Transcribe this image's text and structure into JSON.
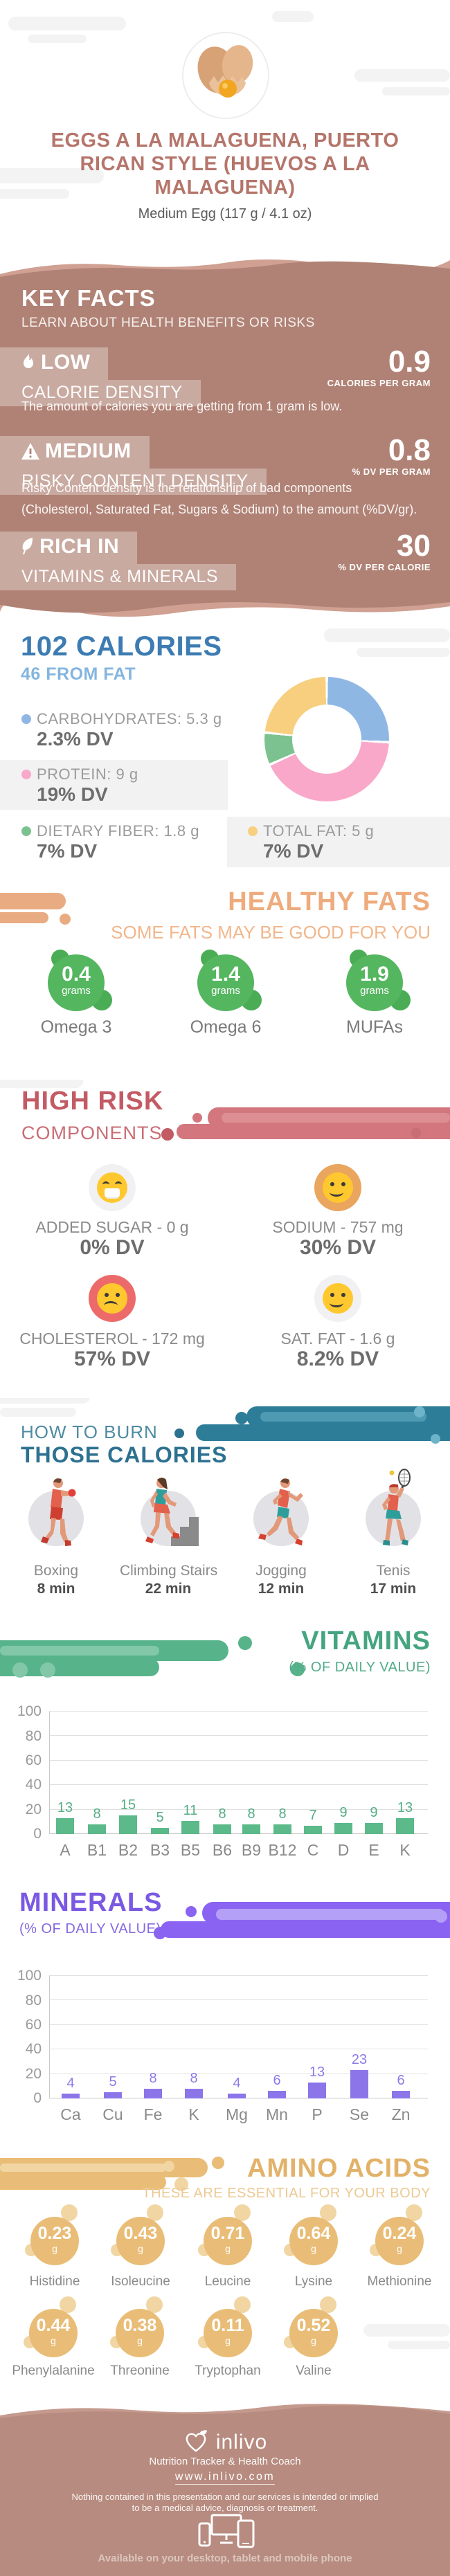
{
  "colors": {
    "rose_bg": "#b08275",
    "rose_light_wave": "#d0a092",
    "title_rose": "#b5756b",
    "blue_dark": "#3c7cb2",
    "blue_light": "#84b5de",
    "healthy_orange": "#eeab7d",
    "healthy_green": "#55b660",
    "risk_red": "#c35b64",
    "risk_blob": "#d3767d",
    "burn_teal_dark": "#2d7190",
    "burn_teal_light": "#4f8ba1",
    "vitamins_green": "#44a57f",
    "minerals_purple": "#7a59e2",
    "amino_gold": "#e2b269",
    "footer_bg": "#b78b7f",
    "face_yellow": "#ffc82e",
    "sugar_circle": "#f1f1f3",
    "sodium_circle": "#eaa55e",
    "cholesterol_circle": "#ed6a6b",
    "satfat_circle": "#f1f1f3"
  },
  "header": {
    "title": "EGGS A LA MALAGUENA, PUERTO RICAN STYLE (HUEVOS A LA MALAGUENA)",
    "subtitle": "Medium Egg (117 g / 4.1 oz)"
  },
  "key_facts": {
    "title": "KEY FACTS",
    "subtitle": "LEARN ABOUT HEALTH BENEFITS OR RISKS",
    "facts": [
      {
        "icon": "flame-icon",
        "level": "LOW",
        "name": "CALORIE DENSITY",
        "value": "0.9",
        "unit": "CALORIES PER GRAM",
        "description": "The amount of calories you are getting from 1 gram is low."
      },
      {
        "icon": "warning-icon",
        "level": "MEDIUM",
        "name": "RISKY CONTENT DENSITY",
        "value": "0.8",
        "unit": "% DV PER GRAM",
        "description_line1": "Risky Content density is the relationship of bad components",
        "description_line2": "(Cholesterol, Saturated Fat, Sugars & Sodium) to the amount (%DV/gr)."
      },
      {
        "icon": "leaf-icon",
        "level": "RICH IN",
        "name": "VITAMINS & MINERALS",
        "value": "30",
        "unit": "% DV PER CALORIE"
      }
    ]
  },
  "calories": {
    "title": "102 CALORIES",
    "subtitle": "46 FROM FAT",
    "legend": [
      {
        "label": "CARBOHYDRATES: 5.3 g",
        "dv": "2.3% DV",
        "color": "#8fb7e3"
      },
      {
        "label": "PROTEIN: 9 g",
        "dv": "19% DV",
        "color": "#f9a8c9"
      },
      {
        "label": "DIETARY FIBER: 1.8 g",
        "dv": "7% DV",
        "color": "#7cc290"
      },
      {
        "label": "TOTAL FAT: 5 g",
        "dv": "7% DV",
        "color": "#f7cf7e"
      }
    ]
  },
  "healthy_fats": {
    "title": "HEALTHY FATS",
    "subtitle": "SOME FATS MAY BE GOOD FOR YOU",
    "items": [
      {
        "value": "0.4",
        "unit": "grams",
        "label": "Omega 3"
      },
      {
        "value": "1.4",
        "unit": "grams",
        "label": "Omega 6"
      },
      {
        "value": "1.9",
        "unit": "grams",
        "label": "MUFAs"
      }
    ]
  },
  "high_risk": {
    "title": "HIGH RISK",
    "subtitle": "COMPONENTS",
    "items": [
      {
        "icon": "grin-face-icon",
        "label": "ADDED SUGAR - 0 g",
        "dv": "0% DV",
        "circle_color": "#f1f1f3"
      },
      {
        "icon": "smile-face-icon",
        "label": "SODIUM - 757 mg",
        "dv": "30% DV",
        "circle_color": "#eaa55e"
      },
      {
        "icon": "sad-face-icon",
        "label": "CHOLESTEROL - 172 mg",
        "dv": "57% DV",
        "circle_color": "#ed6a6b"
      },
      {
        "icon": "smile-face-icon",
        "label": "SAT. FAT - 1.6 g",
        "dv": "8.2% DV",
        "circle_color": "#f1f1f3"
      }
    ]
  },
  "burn": {
    "title_line1": "HOW TO BURN",
    "title_line2": "THOSE CALORIES",
    "activities": [
      {
        "icon": "boxing-icon",
        "label": "Boxing",
        "minutes": "8 min"
      },
      {
        "icon": "climbing-stairs-icon",
        "label": "Climbing Stairs",
        "minutes": "22 min"
      },
      {
        "icon": "jogging-icon",
        "label": "Jogging",
        "minutes": "12 min"
      },
      {
        "icon": "tennis-icon",
        "label": "Tenis",
        "minutes": "17 min"
      }
    ]
  },
  "vitamins_section": {
    "title": "VITAMINS",
    "subtitle": "(% OF DAILY VALUE)"
  },
  "minerals_section": {
    "title": "MINERALS",
    "subtitle": "(% OF DAILY VALUE)"
  },
  "amino_acids": {
    "title": "AMINO ACIDS",
    "subtitle": "THESE ARE ESSENTIAL FOR YOUR BODY",
    "items": [
      {
        "value": "0.23",
        "unit": "g",
        "label": "Histidine"
      },
      {
        "value": "0.43",
        "unit": "g",
        "label": "Isoleucine"
      },
      {
        "value": "0.71",
        "unit": "g",
        "label": "Leucine"
      },
      {
        "value": "0.64",
        "unit": "g",
        "label": "Lysine"
      },
      {
        "value": "0.24",
        "unit": "g",
        "label": "Methionine"
      },
      {
        "value": "0.44",
        "unit": "g",
        "label": "Phenylalanine"
      },
      {
        "value": "0.38",
        "unit": "g",
        "label": "Threonine"
      },
      {
        "value": "0.11",
        "unit": "g",
        "label": "Tryptophan"
      },
      {
        "value": "0.52",
        "unit": "g",
        "label": "Valine"
      }
    ]
  },
  "footer": {
    "brand": "inlivo",
    "tagline": "Nutrition Tracker & Health Coach",
    "url": "www.inlivo.com",
    "disclaimer_line1": "Nothing contained in this presentation and our services is intended or implied",
    "disclaimer_line2": "to be a medical advice, diagnosis or treatment.",
    "availability": "Available on your desktop, tablet and mobile phone"
  },
  "chart_data": [
    {
      "id": "macros-donut",
      "type": "pie",
      "title": "Calorie composition donut",
      "segments": [
        {
          "label": "CARBOHYDRATES",
          "value": 25.8,
          "color": "#8fb7e3"
        },
        {
          "label": "PROTEIN",
          "value": 42.5,
          "color": "#f9a8c9"
        },
        {
          "label": "DIETARY FIBER",
          "value": 8.4,
          "color": "#7cc290"
        },
        {
          "label": "TOTAL FAT",
          "value": 23.3,
          "color": "#f7cf7e"
        }
      ],
      "legend_position": "left"
    },
    {
      "id": "vitamins",
      "type": "bar",
      "title": "VITAMINS",
      "subtitle": "(% OF DAILY VALUE)",
      "categories": [
        "A",
        "B1",
        "B2",
        "B3",
        "B5",
        "B6",
        "B9",
        "B12",
        "C",
        "D",
        "E",
        "K"
      ],
      "values": [
        13,
        8,
        15,
        5,
        11,
        8,
        8,
        8,
        7,
        9,
        9,
        13
      ],
      "ylim": [
        0,
        100
      ],
      "yticks": [
        0,
        20,
        40,
        60,
        80,
        100
      ],
      "grid": true,
      "bar_color": "#5bb98a",
      "value_label_color": "#55ad85"
    },
    {
      "id": "minerals",
      "type": "bar",
      "title": "MINERALS",
      "subtitle": "(% OF DAILY VALUE)",
      "categories": [
        "Ca",
        "Cu",
        "Fe",
        "K",
        "Mg",
        "Mn",
        "P",
        "Se",
        "Zn"
      ],
      "values": [
        4,
        5,
        8,
        8,
        4,
        6,
        13,
        23,
        6
      ],
      "ylim": [
        0,
        100
      ],
      "yticks": [
        0,
        20,
        40,
        60,
        80,
        100
      ],
      "grid": true,
      "bar_color": "#8b75e9",
      "value_label_color": "#8d7ae9"
    }
  ]
}
